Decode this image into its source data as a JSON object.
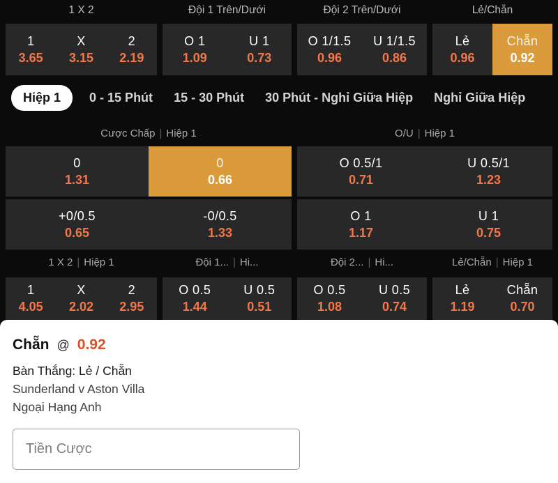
{
  "colors": {
    "selected_cell_bg": "#dc9b3b",
    "odds_value_orange": "#f2774a",
    "slip_odds_orange": "#d8512a",
    "cell_bg": "#282828",
    "page_bg": "#0b0b0b"
  },
  "top_markets": {
    "groups": [
      {
        "header": "1 X 2",
        "cells": [
          {
            "label": "1",
            "value": "3.65"
          },
          {
            "label": "X",
            "value": "3.15"
          },
          {
            "label": "2",
            "value": "2.19"
          }
        ]
      },
      {
        "header": "Đội 1 Trên/Dưới",
        "cells": [
          {
            "label": "O 1",
            "value": "1.09"
          },
          {
            "label": "U 1",
            "value": "0.73"
          }
        ]
      },
      {
        "header": "Đội 2 Trên/Dưới",
        "cells": [
          {
            "label": "O 1/1.5",
            "value": "0.96"
          },
          {
            "label": "U 1/1.5",
            "value": "0.86"
          }
        ]
      },
      {
        "header": "Lẻ/Chẵn",
        "cells": [
          {
            "label": "Lẻ",
            "value": "0.96"
          },
          {
            "label": "Chẵn",
            "value": "0.92"
          }
        ]
      }
    ]
  },
  "tabs": [
    {
      "label": "Hiệp 1"
    },
    {
      "label": "0 - 15 Phút"
    },
    {
      "label": "15 - 30 Phút"
    },
    {
      "label": "30 Phút - Nghỉ Giữa Hiệp"
    },
    {
      "label": "Nghỉ Giữa Hiệp"
    }
  ],
  "h1_sections": {
    "handicap": {
      "title": "Cược Chấp",
      "separator": "|",
      "subtitle": "Hiệp 1",
      "rows": [
        [
          {
            "label": "0",
            "value": "1.31"
          },
          {
            "label": "0",
            "value": "0.66"
          }
        ],
        [
          {
            "label": "+0/0.5",
            "value": "0.65"
          },
          {
            "label": "-0/0.5",
            "value": "1.33"
          }
        ]
      ]
    },
    "ou": {
      "title": "O/U",
      "separator": "|",
      "subtitle": "Hiệp 1",
      "rows": [
        [
          {
            "label": "O 0.5/1",
            "value": "0.71"
          },
          {
            "label": "U 0.5/1",
            "value": "1.23"
          }
        ],
        [
          {
            "label": "O 1",
            "value": "1.17"
          },
          {
            "label": "U 1",
            "value": "0.75"
          }
        ]
      ]
    }
  },
  "h1_markets": {
    "groups": [
      {
        "header": "1 X 2",
        "separator": "|",
        "subheader": "Hiệp 1",
        "cells": [
          {
            "label": "1",
            "value": "4.05"
          },
          {
            "label": "X",
            "value": "2.02"
          },
          {
            "label": "2",
            "value": "2.95"
          }
        ]
      },
      {
        "header": "Đội 1...",
        "separator": "|",
        "subheader": "Hi...",
        "cells": [
          {
            "label": "O 0.5",
            "value": "1.44"
          },
          {
            "label": "U 0.5",
            "value": "0.51"
          }
        ]
      },
      {
        "header": "Đội 2...",
        "separator": "|",
        "subheader": "Hi...",
        "cells": [
          {
            "label": "O 0.5",
            "value": "1.08"
          },
          {
            "label": "U 0.5",
            "value": "0.74"
          }
        ]
      },
      {
        "header": "Lẻ/Chẵn",
        "separator": "|",
        "subheader": "Hiệp 1",
        "cells": [
          {
            "label": "Lẻ",
            "value": "1.19"
          },
          {
            "label": "Chẵn",
            "value": "0.70"
          }
        ]
      }
    ]
  },
  "bet_slip": {
    "selection": "Chẵn",
    "at_symbol": "@",
    "odds": "0.92",
    "market": "Bàn Thắng: Lẻ / Chẵn",
    "event": "Sunderland v Aston Villa",
    "league": "Ngoại Hạng Anh",
    "stake_placeholder": "Tiền Cược"
  }
}
